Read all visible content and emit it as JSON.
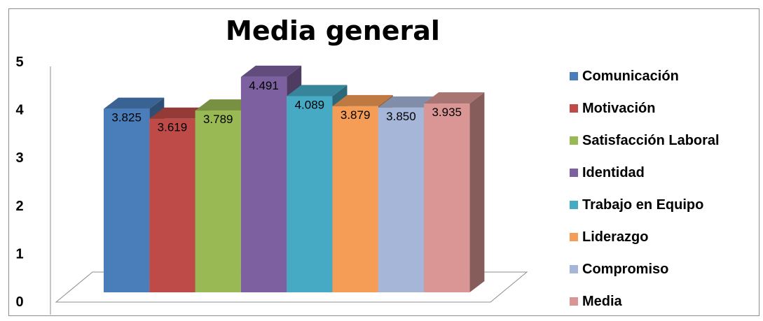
{
  "chart_data": {
    "type": "bar",
    "title": "Media general",
    "xlabel": "",
    "ylabel": "",
    "ylim": [
      0,
      5
    ],
    "yticks": [
      "0",
      "1",
      "2",
      "3",
      "4",
      "5"
    ],
    "legend_position": "right",
    "grid": false,
    "series": [
      {
        "name": "Comunicación",
        "value": 3.825,
        "label": "3.825",
        "color": "#4a7ebb"
      },
      {
        "name": "Motivación",
        "value": 3.619,
        "label": "3.619",
        "color": "#be4b48"
      },
      {
        "name": "Satisfacción Laboral",
        "value": 3.789,
        "label": "3.789",
        "color": "#98b954"
      },
      {
        "name": "Identidad",
        "value": 4.491,
        "label": "4.491",
        "color": "#7d60a0"
      },
      {
        "name": "Trabajo en Equipo",
        "value": 4.089,
        "label": "4.089",
        "color": "#46aac5"
      },
      {
        "name": "Liderazgo",
        "value": 3.879,
        "label": "3.879",
        "color": "#f59d56"
      },
      {
        "name": "Compromiso",
        "value": 3.85,
        "label": "3.850",
        "color": "#a5b6d9"
      },
      {
        "name": "Media",
        "value": 3.935,
        "label": "3.935",
        "color": "#d99694"
      }
    ]
  }
}
